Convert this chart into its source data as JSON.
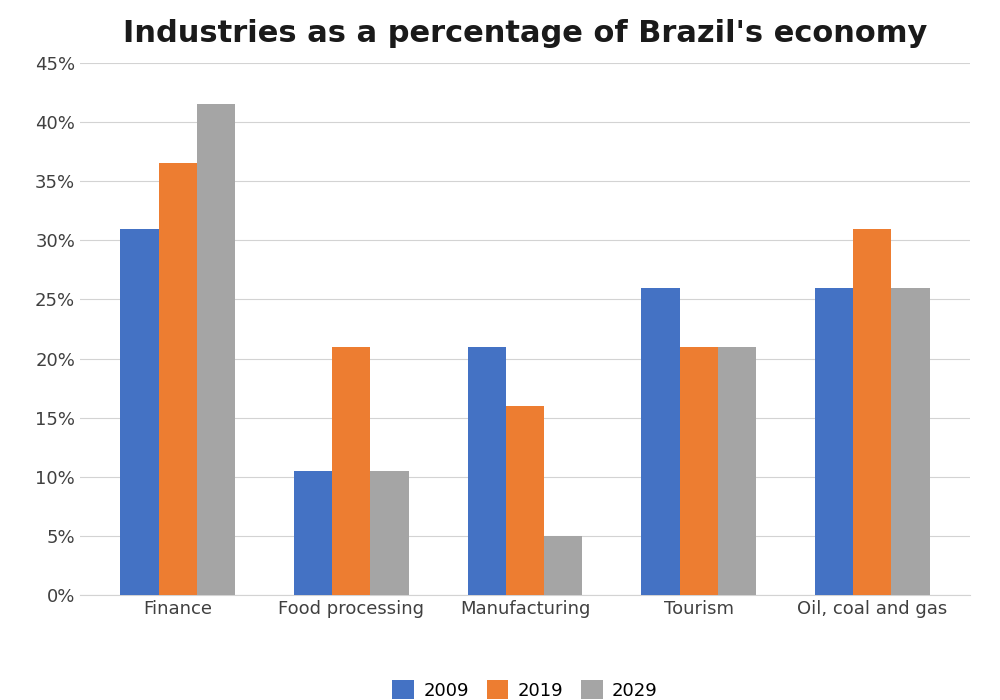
{
  "title": "Industries as a percentage of Brazil's economy",
  "categories": [
    "Finance",
    "Food processing",
    "Manufacturing",
    "Tourism",
    "Oil, coal and gas"
  ],
  "series": {
    "2009": [
      31,
      10.5,
      21,
      26,
      26
    ],
    "2019": [
      36.5,
      21,
      16,
      21,
      31
    ],
    "2029": [
      41.5,
      10.5,
      5,
      21,
      26
    ]
  },
  "colors": {
    "2009": "#4472C4",
    "2019": "#ED7D31",
    "2029": "#A5A5A5"
  },
  "ylim": [
    0,
    45
  ],
  "yticks": [
    0,
    5,
    10,
    15,
    20,
    25,
    30,
    35,
    40,
    45
  ],
  "ytick_labels": [
    "0%",
    "5%",
    "10%",
    "15%",
    "20%",
    "25%",
    "30%",
    "35%",
    "40%",
    "45%"
  ],
  "legend_labels": [
    "2009",
    "2019",
    "2029"
  ],
  "bar_width": 0.22,
  "title_fontsize": 22,
  "tick_fontsize": 13,
  "legend_fontsize": 13,
  "background_color": "#ffffff",
  "grid_color": "#d3d3d3"
}
